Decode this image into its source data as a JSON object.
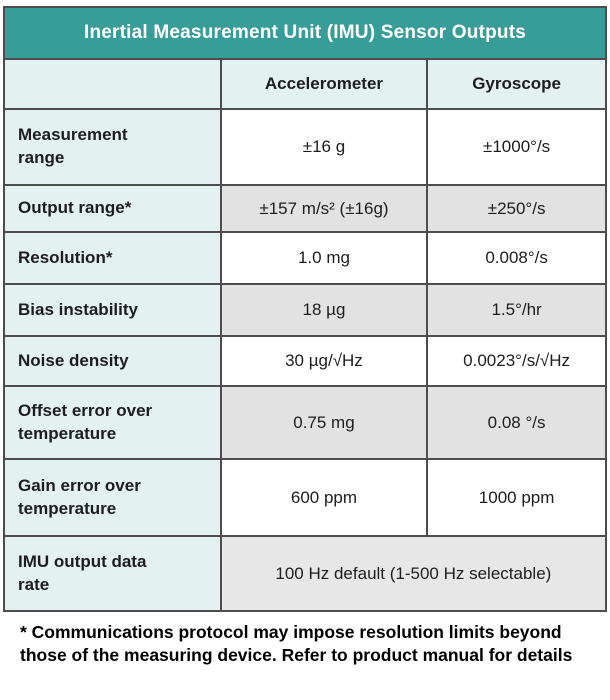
{
  "title": "Inertial Measurement Unit (IMU) Sensor Outputs",
  "columns": [
    "",
    "Accelerometer",
    "Gyroscope"
  ],
  "rows": [
    {
      "label": "Measurement\nrange",
      "accelerometer": "±16 g",
      "gyroscope": "±1000°/s"
    },
    {
      "label": "Output range*",
      "accelerometer": "±157 m/s² (±16g)",
      "gyroscope": "±250°/s"
    },
    {
      "label": "Resolution*",
      "accelerometer": "1.0 mg",
      "gyroscope": "0.008°/s"
    },
    {
      "label": "Bias instability",
      "accelerometer": "18 µg",
      "gyroscope": "1.5°/hr"
    },
    {
      "label": "Noise density",
      "accelerometer": "30 µg/√Hz",
      "gyroscope": "0.0023°/s/√Hz"
    },
    {
      "label": "Offset error over\ntemperature",
      "accelerometer": "0.75 mg",
      "gyroscope": "0.08 °/s"
    },
    {
      "label": "Gain error over\ntemperature",
      "accelerometer": "600 ppm",
      "gyroscope": "1000 ppm"
    }
  ],
  "merged_row": {
    "label": "IMU output data\nrate",
    "value": "100 Hz default (1-500 Hz selectable)"
  },
  "footnote": "* Communications protocol may impose resolution limits beyond those of the measuring device. Refer to product manual for details",
  "colors": {
    "teal": "#389c99",
    "border": "#4d4d4d",
    "mint": "#e3f1f0",
    "stripe": "#e2e2e2",
    "merged": "#e7e7e7",
    "text": "#1d1d1d"
  }
}
